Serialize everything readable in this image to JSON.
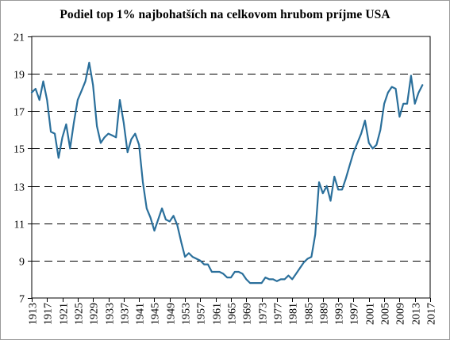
{
  "chart_data": {
    "type": "line",
    "title": "Podiel top 1% najbohatších na celkovom hrubom príjme USA",
    "xlabel": "",
    "ylabel": "",
    "xlim": [
      1913,
      2017
    ],
    "ylim": [
      7,
      21
    ],
    "y_ticks": [
      7,
      9,
      11,
      13,
      15,
      17,
      19,
      21
    ],
    "x_ticks": [
      1913,
      1917,
      1921,
      1925,
      1929,
      1933,
      1937,
      1941,
      1945,
      1949,
      1953,
      1957,
      1961,
      1965,
      1969,
      1973,
      1977,
      1981,
      1985,
      1989,
      1993,
      1997,
      2001,
      2005,
      2009,
      2013,
      2017
    ],
    "grid": "horizontal dashed",
    "legend": "none",
    "line_color": "#2a6f9b",
    "series": [
      {
        "x": [
          1913,
          1914,
          1915,
          1916,
          1917,
          1918,
          1919,
          1920,
          1921,
          1922,
          1923,
          1924,
          1925,
          1926,
          1927,
          1928,
          1929,
          1930,
          1931,
          1932,
          1933,
          1934,
          1935,
          1936,
          1937,
          1938,
          1939,
          1940,
          1941,
          1942,
          1943,
          1944,
          1945,
          1946,
          1947,
          1948,
          1949,
          1950,
          1951,
          1952,
          1953,
          1954,
          1955,
          1956,
          1957,
          1958,
          1959,
          1960,
          1961,
          1962,
          1963,
          1964,
          1965,
          1966,
          1967,
          1968,
          1969,
          1970,
          1971,
          1972,
          1973,
          1974,
          1975,
          1976,
          1977,
          1978,
          1979,
          1980,
          1981,
          1982,
          1983,
          1984,
          1985,
          1986,
          1987,
          1988,
          1989,
          1990,
          1991,
          1992,
          1993,
          1994,
          1995,
          1996,
          1997,
          1998,
          1999,
          2000,
          2001,
          2002,
          2003,
          2004,
          2005,
          2006,
          2007,
          2008,
          2009,
          2010,
          2011,
          2012,
          2013,
          2014,
          2015
        ],
        "values": [
          18.0,
          18.2,
          17.6,
          18.6,
          17.6,
          15.9,
          15.8,
          14.5,
          15.6,
          16.3,
          15.0,
          16.4,
          17.6,
          18.1,
          18.6,
          19.6,
          18.4,
          16.2,
          15.3,
          15.6,
          15.8,
          15.7,
          15.6,
          17.6,
          16.4,
          14.8,
          15.5,
          15.8,
          15.2,
          13.2,
          11.8,
          11.3,
          10.6,
          11.2,
          11.8,
          11.2,
          11.1,
          11.4,
          10.9,
          10.0,
          9.2,
          9.4,
          9.2,
          9.1,
          9.0,
          8.8,
          8.8,
          8.4,
          8.4,
          8.4,
          8.3,
          8.1,
          8.1,
          8.4,
          8.4,
          8.3,
          8.0,
          7.8,
          7.8,
          7.8,
          7.8,
          8.1,
          8.0,
          8.0,
          7.9,
          8.0,
          8.0,
          8.2,
          8.0,
          8.3,
          8.6,
          8.9,
          9.1,
          9.2,
          10.4,
          13.2,
          12.6,
          13.0,
          12.2,
          13.5,
          12.8,
          12.8,
          13.4,
          14.1,
          14.8,
          15.3,
          15.8,
          16.5,
          15.3,
          15.0,
          15.2,
          16.0,
          17.4,
          18.0,
          18.3,
          18.2,
          16.7,
          17.4,
          17.4,
          18.9,
          17.4,
          18.0,
          18.4
        ]
      }
    ]
  }
}
